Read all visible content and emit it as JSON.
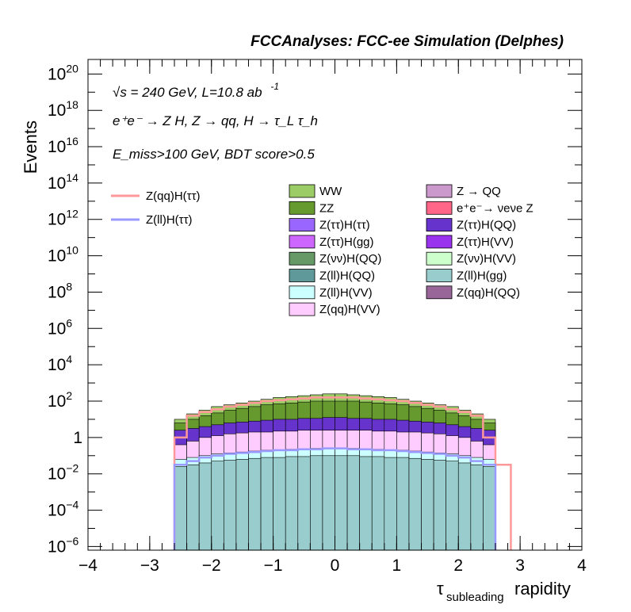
{
  "chart_data": {
    "type": "bar",
    "title": "FCCAnalyses: FCC-ee Simulation (Delphes)",
    "xlabel": "τ_subleading rapidity",
    "xlabel_main": "τ",
    "xlabel_sub": "subleading",
    "xlabel_tail": "rapidity",
    "ylabel": "Events",
    "y_scale": "log",
    "xlim": [
      -4,
      4
    ],
    "ylim_log10": [
      -6.2,
      20.8
    ],
    "x_ticks": [
      "−4",
      "−3",
      "−2",
      "−1",
      "0",
      "1",
      "2",
      "3",
      "4"
    ],
    "y_ticks": [
      {
        "exp": 20,
        "label": "20"
      },
      {
        "exp": 18,
        "label": "18"
      },
      {
        "exp": 16,
        "label": "16"
      },
      {
        "exp": 14,
        "label": "14"
      },
      {
        "exp": 12,
        "label": "12"
      },
      {
        "exp": 10,
        "label": "10"
      },
      {
        "exp": 8,
        "label": "8"
      },
      {
        "exp": 6,
        "label": "6"
      },
      {
        "exp": 4,
        "label": "4"
      },
      {
        "exp": 2,
        "label": "2"
      },
      {
        "exp": 0,
        "label": "1"
      },
      {
        "exp": -2,
        "label": "−2"
      },
      {
        "exp": -4,
        "label": "−4"
      },
      {
        "exp": -6,
        "label": "−6"
      }
    ],
    "annotations": {
      "line1": "√s = 240 GeV, L=10.8 ab",
      "line1_sup": "-1",
      "line2": "e⁺e⁻ → Z H, Z → qq, H → τ_L τ_h",
      "line3": "E_miss>100 GeV, BDT score>0.5"
    },
    "legend_lines": [
      {
        "name": "Z(qq)H(ττ)",
        "color": "#ff9999"
      },
      {
        "name": "Z(ll)H(ττ)",
        "color": "#9999ff"
      }
    ],
    "legend_stack": [
      {
        "name": "WW",
        "color": "#9ccc66"
      },
      {
        "name": "Z → QQ",
        "color": "#cc99cc"
      },
      {
        "name": "ZZ",
        "color": "#66992e"
      },
      {
        "name": "e⁺e⁻→ νeνe Z",
        "color": "#ff6688"
      },
      {
        "name": "Z(ττ)H(ττ)",
        "color": "#9966ff"
      },
      {
        "name": "Z(ττ)H(QQ)",
        "color": "#6633cc"
      },
      {
        "name": "Z(ττ)H(gg)",
        "color": "#cc66ff"
      },
      {
        "name": "Z(ττ)H(VV)",
        "color": "#9933ee"
      },
      {
        "name": "Z(νν)H(QQ)",
        "color": "#669966"
      },
      {
        "name": "Z(νν)H(VV)",
        "color": "#ccffcc"
      },
      {
        "name": "Z(ll)H(QQ)",
        "color": "#5f9999"
      },
      {
        "name": "Z(ll)H(gg)",
        "color": "#99cccc"
      },
      {
        "name": "Z(ll)H(VV)",
        "color": "#ccffff"
      },
      {
        "name": "Z(qq)H(QQ)",
        "color": "#996699"
      },
      {
        "name": "Z(qq)H(VV)",
        "color": "#ffccff"
      }
    ],
    "bin_edges": [
      -2.6,
      2.6
    ],
    "bins": 26,
    "stack_top_log10": [
      1.0,
      1.3,
      1.5,
      1.7,
      1.8,
      1.9,
      2.0,
      2.1,
      2.2,
      2.25,
      2.3,
      2.35,
      2.4,
      2.4,
      2.35,
      2.3,
      2.25,
      2.2,
      2.1,
      2.0,
      1.9,
      1.8,
      1.7,
      1.5,
      1.3,
      1.0
    ],
    "zz_top_log10": [
      0.8,
      1.0,
      1.2,
      1.35,
      1.5,
      1.6,
      1.7,
      1.8,
      1.85,
      1.9,
      1.95,
      2.0,
      2.0,
      2.0,
      2.0,
      1.95,
      1.9,
      1.85,
      1.8,
      1.7,
      1.6,
      1.5,
      1.35,
      1.2,
      1.0,
      0.8
    ],
    "purple_top_log10": [
      0.4,
      0.5,
      0.6,
      0.7,
      0.8,
      0.85,
      0.9,
      0.95,
      1.0,
      1.0,
      1.05,
      1.05,
      1.1,
      1.1,
      1.05,
      1.05,
      1.0,
      1.0,
      0.95,
      0.9,
      0.85,
      0.8,
      0.7,
      0.6,
      0.5,
      0.4
    ],
    "pink_top_log10": [
      -0.4,
      -0.2,
      0.0,
      0.1,
      0.2,
      0.25,
      0.3,
      0.3,
      0.35,
      0.35,
      0.4,
      0.4,
      0.4,
      0.4,
      0.4,
      0.4,
      0.35,
      0.35,
      0.3,
      0.3,
      0.25,
      0.2,
      0.1,
      0.0,
      -0.2,
      -0.4
    ],
    "lightcyan_top_log10": [
      -1.2,
      -1.1,
      -1.0,
      -0.9,
      -0.85,
      -0.8,
      -0.75,
      -0.7,
      -0.7,
      -0.65,
      -0.65,
      -0.6,
      -0.6,
      -0.6,
      -0.6,
      -0.65,
      -0.65,
      -0.7,
      -0.7,
      -0.75,
      -0.8,
      -0.85,
      -0.9,
      -1.0,
      -1.1,
      -1.2
    ],
    "zllgg_top_log10": [
      -1.6,
      -1.5,
      -1.4,
      -1.3,
      -1.25,
      -1.2,
      -1.15,
      -1.1,
      -1.1,
      -1.05,
      -1.05,
      -1.0,
      -1.0,
      -1.0,
      -1.0,
      -1.05,
      -1.05,
      -1.1,
      -1.1,
      -1.15,
      -1.2,
      -1.25,
      -1.3,
      -1.4,
      -1.5,
      -1.6
    ],
    "zqq_htt_log10": [
      0.0,
      1.2,
      1.4,
      1.55,
      1.7,
      1.8,
      1.9,
      2.0,
      2.05,
      2.1,
      2.15,
      2.2,
      2.2,
      2.2,
      2.2,
      2.15,
      2.1,
      2.05,
      2.0,
      1.9,
      1.8,
      1.7,
      1.55,
      1.4,
      1.2,
      0.0
    ],
    "zll_htt_log10": [
      -1.5,
      -1.3,
      -1.1,
      -1.0,
      -0.9,
      -0.85,
      -0.8,
      -0.75,
      -0.7,
      -0.7,
      -0.65,
      -0.65,
      -0.6,
      -0.6,
      -0.65,
      -0.65,
      -0.7,
      -0.7,
      -0.75,
      -0.8,
      -0.85,
      -0.9,
      -1.0,
      -1.1,
      -1.3,
      -1.5
    ],
    "zqq_htt_tail": {
      "x_from": 2.6,
      "x_to": 2.85,
      "log10": -1.5
    }
  }
}
